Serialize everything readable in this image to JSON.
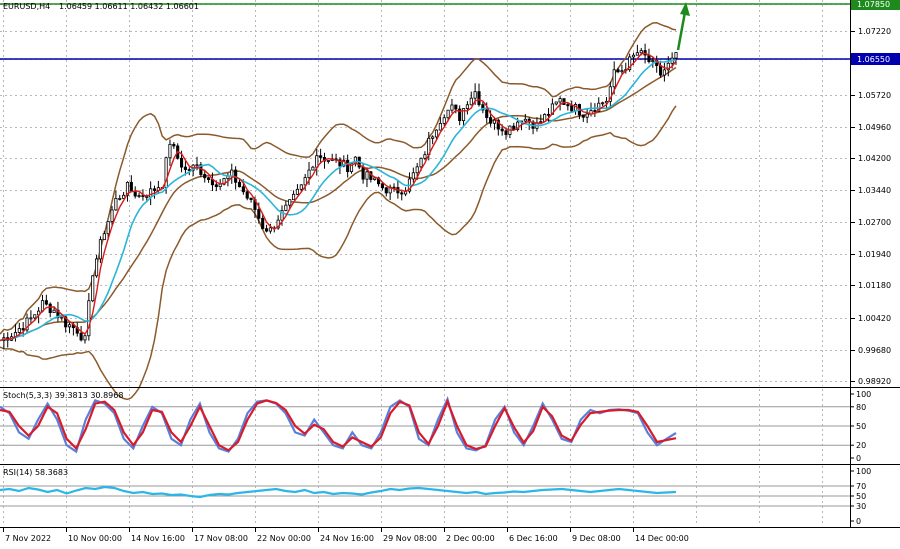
{
  "header": {
    "symbol": "EURUSD,H4",
    "ohlc": "1.06459 1.06611 1.06432 1.06601"
  },
  "colors": {
    "candle": "#000000",
    "bollinger": "#8B5A2B",
    "ma_fast": "#D81B1B",
    "ma_slow": "#2BB6D8",
    "green_line": "#1E8A1E",
    "blue_line": "#0000B0",
    "stoch_main": "#D81B2B",
    "stoch_signal": "#5B7FD8",
    "rsi": "#2BB6E8",
    "grid": "#B8B8B8"
  },
  "chart_data": [
    {
      "type": "line",
      "panel": "price",
      "note_series": "candlesticks with Bollinger Bands and two moving averages",
      "y_ticks": [
        "1.07850",
        "1.07220",
        "1.06550",
        "1.05720",
        "1.04960",
        "1.04200",
        "1.03440",
        "1.02700",
        "1.01940",
        "1.01180",
        "1.00420",
        "0.99680",
        "0.98920"
      ],
      "ylim": [
        0.987,
        1.08
      ],
      "x_ticks": [
        "7 Nov 2022",
        "10 Nov 00:00",
        "14 Nov 16:00",
        "17 Nov 08:00",
        "22 Nov 00:00",
        "24 Nov 16:00",
        "29 Nov 08:00",
        "2 Dec 00:00",
        "6 Dec 16:00",
        "9 Dec 08:00",
        "14 Dec 00:00"
      ],
      "levels": [
        {
          "value": 1.0785,
          "label": "1.07850",
          "color": "#1E8A1E"
        },
        {
          "value": 1.0655,
          "label": "1.06550",
          "color": "#0000B0"
        }
      ],
      "close_path": [
        [
          0,
          0.999
        ],
        [
          4,
          1.001
        ],
        [
          8,
          1.004
        ],
        [
          11,
          1.0075
        ],
        [
          14,
          1.006
        ],
        [
          17,
          1.003
        ],
        [
          20,
          1.0015
        ],
        [
          22,
          0.999
        ],
        [
          24,
          1.015
        ],
        [
          27,
          1.025
        ],
        [
          30,
          1.032
        ],
        [
          33,
          1.035
        ],
        [
          36,
          1.033
        ],
        [
          39,
          1.034
        ],
        [
          42,
          1.036
        ],
        [
          44,
          1.046
        ],
        [
          46,
          1.042
        ],
        [
          48,
          1.039
        ],
        [
          51,
          1.04
        ],
        [
          54,
          1.037
        ],
        [
          57,
          1.036
        ],
        [
          60,
          1.038
        ],
        [
          63,
          1.034
        ],
        [
          66,
          1.03
        ],
        [
          68,
          1.026
        ],
        [
          70,
          1.025
        ],
        [
          72,
          1.028
        ],
        [
          75,
          1.031
        ],
        [
          78,
          1.035
        ],
        [
          80,
          1.039
        ],
        [
          82,
          1.043
        ],
        [
          84,
          1.042
        ],
        [
          87,
          1.041
        ],
        [
          90,
          1.04
        ],
        [
          92,
          1.042
        ],
        [
          94,
          1.038
        ],
        [
          96,
          1.037
        ],
        [
          99,
          1.035
        ],
        [
          102,
          1.034
        ],
        [
          105,
          1.035
        ],
        [
          107,
          1.038
        ],
        [
          109,
          1.041
        ],
        [
          111,
          1.046
        ],
        [
          113,
          1.05
        ],
        [
          115,
          1.053
        ],
        [
          117,
          1.054
        ],
        [
          119,
          1.052
        ],
        [
          121,
          1.056
        ],
        [
          123,
          1.058
        ],
        [
          125,
          1.054
        ],
        [
          127,
          1.051
        ],
        [
          129,
          1.05
        ],
        [
          131,
          1.049
        ],
        [
          133,
          1.05
        ],
        [
          135,
          1.052
        ],
        [
          137,
          1.051
        ],
        [
          139,
          1.05
        ],
        [
          141,
          1.052
        ],
        [
          143,
          1.054
        ],
        [
          145,
          1.056
        ],
        [
          147,
          1.055
        ],
        [
          149,
          1.054
        ],
        [
          151,
          1.053
        ],
        [
          153,
          1.054
        ],
        [
          155,
          1.055
        ],
        [
          157,
          1.056
        ],
        [
          159,
          1.062
        ],
        [
          161,
          1.063
        ],
        [
          163,
          1.065
        ],
        [
          165,
          1.067
        ],
        [
          167,
          1.066
        ],
        [
          169,
          1.064
        ],
        [
          171,
          1.062
        ],
        [
          173,
          1.064
        ],
        [
          175,
          1.066
        ]
      ],
      "x_range": [
        0,
        175
      ]
    },
    {
      "type": "line",
      "panel": "stochastic",
      "title": "Stoch(5,3,3) 39.3813 30.8968",
      "y_ticks": [
        "100",
        "80",
        "50",
        "20",
        "0"
      ],
      "ylim": [
        0,
        100
      ],
      "levels": [
        80,
        50,
        20
      ],
      "series": [
        {
          "values": [
            80,
            70,
            40,
            30,
            60,
            85,
            60,
            20,
            10,
            60,
            90,
            85,
            70,
            30,
            15,
            50,
            80,
            70,
            30,
            20,
            60,
            85,
            40,
            15,
            10,
            30,
            70,
            88,
            90,
            85,
            70,
            40,
            35,
            60,
            40,
            20,
            15,
            40,
            20,
            15,
            40,
            80,
            90,
            80,
            30,
            20,
            60,
            92,
            40,
            15,
            12,
            20,
            60,
            80,
            40,
            20,
            50,
            85,
            60,
            30,
            25,
            60,
            75,
            70,
            75,
            76,
            74,
            70,
            40,
            20,
            30,
            39
          ]
        },
        {
          "values": [
            75,
            72,
            50,
            35,
            50,
            80,
            70,
            30,
            15,
            45,
            85,
            88,
            75,
            40,
            20,
            40,
            75,
            72,
            40,
            25,
            50,
            80,
            50,
            20,
            12,
            25,
            60,
            85,
            90,
            86,
            75,
            50,
            38,
            52,
            45,
            25,
            18,
            32,
            25,
            18,
            32,
            70,
            88,
            82,
            40,
            22,
            50,
            88,
            50,
            20,
            14,
            18,
            50,
            78,
            48,
            24,
            42,
            80,
            65,
            35,
            27,
            52,
            70,
            72,
            74,
            75,
            75,
            72,
            50,
            25,
            28,
            31
          ]
        }
      ]
    },
    {
      "type": "line",
      "panel": "rsi",
      "title": "RSI(14) 58.3683",
      "y_ticks": [
        "100",
        "70",
        "50",
        "30",
        "0"
      ],
      "ylim": [
        0,
        100
      ],
      "levels": [
        70,
        50,
        30
      ],
      "series": [
        {
          "values": [
            62,
            64,
            60,
            66,
            63,
            58,
            62,
            55,
            61,
            66,
            64,
            68,
            66,
            60,
            56,
            58,
            54,
            55,
            52,
            53,
            50,
            48,
            52,
            54,
            53,
            56,
            58,
            60,
            62,
            64,
            60,
            58,
            62,
            56,
            58,
            54,
            56,
            55,
            53,
            57,
            60,
            64,
            62,
            65,
            66,
            64,
            62,
            60,
            58,
            56,
            58,
            54,
            56,
            57,
            59,
            58,
            60,
            62,
            63,
            64,
            62,
            60,
            58,
            60,
            62,
            64,
            62,
            60,
            58,
            56,
            57,
            58
          ]
        }
      ]
    }
  ]
}
